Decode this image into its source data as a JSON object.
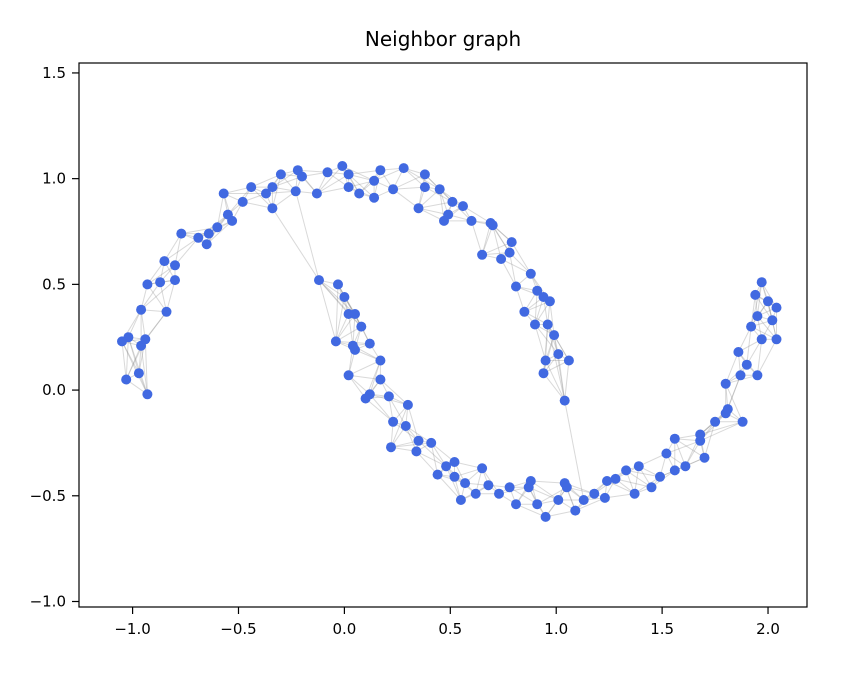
{
  "chart_data": {
    "type": "scatter",
    "title": "Neighbor graph",
    "xlabel": "",
    "ylabel": "",
    "grid": false,
    "legend": null,
    "xlim": [
      -1.253,
      2.184
    ],
    "ylim": [
      -1.026,
      1.547
    ],
    "x_ticks": [
      {
        "value": -1.0,
        "label": "−1.0"
      },
      {
        "value": -0.5,
        "label": "−0.5"
      },
      {
        "value": 0.0,
        "label": "0.0"
      },
      {
        "value": 0.5,
        "label": "0.5"
      },
      {
        "value": 1.0,
        "label": "1.0"
      },
      {
        "value": 1.5,
        "label": "1.5"
      },
      {
        "value": 2.0,
        "label": "2.0"
      }
    ],
    "y_ticks": [
      {
        "value": -1.0,
        "label": "−1.0"
      },
      {
        "value": -0.5,
        "label": "−0.5"
      },
      {
        "value": 0.0,
        "label": "0.0"
      },
      {
        "value": 0.5,
        "label": "0.5"
      },
      {
        "value": 1.0,
        "label": "1.0"
      },
      {
        "value": 1.5,
        "label": "1.5"
      }
    ],
    "marker": {
      "color": "#4169e1",
      "radius": 5
    },
    "edge_style": {
      "color": "#888888",
      "opacity": 0.32,
      "width": 1
    },
    "graph": {
      "type": "knn",
      "k": 6,
      "extra_edges": [
        [
          0,
          142
        ],
        [
          33,
          72
        ],
        [
          37,
          72
        ]
      ]
    },
    "points": [
      [
        1.04,
        -0.05
      ],
      [
        0.94,
        0.08
      ],
      [
        1.01,
        0.17
      ],
      [
        1.06,
        0.14
      ],
      [
        0.95,
        0.14
      ],
      [
        0.9,
        0.31
      ],
      [
        0.96,
        0.31
      ],
      [
        0.97,
        0.42
      ],
      [
        0.85,
        0.37
      ],
      [
        0.91,
        0.47
      ],
      [
        0.94,
        0.44
      ],
      [
        0.81,
        0.49
      ],
      [
        0.74,
        0.62
      ],
      [
        0.79,
        0.7
      ],
      [
        0.78,
        0.65
      ],
      [
        0.65,
        0.64
      ],
      [
        0.69,
        0.79
      ],
      [
        0.7,
        0.78
      ],
      [
        0.56,
        0.87
      ],
      [
        0.47,
        0.8
      ],
      [
        0.51,
        0.89
      ],
      [
        0.49,
        0.83
      ],
      [
        0.35,
        0.86
      ],
      [
        0.38,
        0.96
      ],
      [
        0.38,
        1.02
      ],
      [
        0.23,
        0.95
      ],
      [
        0.14,
        0.91
      ],
      [
        0.17,
        1.04
      ],
      [
        0.14,
        0.99
      ],
      [
        -0.01,
        1.06
      ],
      [
        0.02,
        0.96
      ],
      [
        0.02,
        1.02
      ],
      [
        -0.13,
        0.93
      ],
      [
        -0.23,
        0.94
      ],
      [
        -0.2,
        1.01
      ],
      [
        -0.22,
        1.04
      ],
      [
        -0.37,
        0.93
      ],
      [
        -0.34,
        0.86
      ],
      [
        -0.34,
        0.96
      ],
      [
        -0.48,
        0.89
      ],
      [
        -0.57,
        0.93
      ],
      [
        -0.53,
        0.8
      ],
      [
        -0.55,
        0.83
      ],
      [
        -0.69,
        0.72
      ],
      [
        -0.65,
        0.69
      ],
      [
        -0.64,
        0.74
      ],
      [
        -0.77,
        0.74
      ],
      [
        -0.85,
        0.61
      ],
      [
        -0.8,
        0.52
      ],
      [
        -0.8,
        0.59
      ],
      [
        -0.93,
        0.5
      ],
      [
        -0.87,
        0.51
      ],
      [
        -0.84,
        0.37
      ],
      [
        -0.96,
        0.38
      ],
      [
        -1.02,
        0.25
      ],
      [
        -0.96,
        0.21
      ],
      [
        -0.94,
        0.24
      ],
      [
        -1.05,
        0.23
      ],
      [
        -0.97,
        0.08
      ],
      [
        -0.93,
        -0.02
      ],
      [
        -1.03,
        0.05
      ],
      [
        0.45,
        0.95
      ],
      [
        0.28,
        1.05
      ],
      [
        0.07,
        0.93
      ],
      [
        -0.08,
        1.03
      ],
      [
        -0.3,
        1.02
      ],
      [
        0.6,
        0.8
      ],
      [
        -0.44,
        0.96
      ],
      [
        0.88,
        0.55
      ],
      [
        0.99,
        0.26
      ],
      [
        -0.6,
        0.77
      ],
      [
        -0.03,
        0.5
      ],
      [
        -0.12,
        0.52
      ],
      [
        0.02,
        0.36
      ],
      [
        0.05,
        0.36
      ],
      [
        -0.04,
        0.23
      ],
      [
        0.05,
        0.19
      ],
      [
        0.12,
        0.22
      ],
      [
        0.04,
        0.21
      ],
      [
        0.02,
        0.07
      ],
      [
        0.12,
        -0.02
      ],
      [
        0.17,
        0.05
      ],
      [
        0.1,
        -0.04
      ],
      [
        0.21,
        -0.03
      ],
      [
        0.29,
        -0.17
      ],
      [
        0.23,
        -0.15
      ],
      [
        0.22,
        -0.27
      ],
      [
        0.34,
        -0.29
      ],
      [
        0.41,
        -0.25
      ],
      [
        0.35,
        -0.24
      ],
      [
        0.48,
        -0.36
      ],
      [
        0.57,
        -0.44
      ],
      [
        0.52,
        -0.34
      ],
      [
        0.52,
        -0.41
      ],
      [
        0.65,
        -0.37
      ],
      [
        0.73,
        -0.49
      ],
      [
        0.68,
        -0.45
      ],
      [
        0.81,
        -0.54
      ],
      [
        0.91,
        -0.54
      ],
      [
        0.87,
        -0.46
      ],
      [
        0.88,
        -0.43
      ],
      [
        1.01,
        -0.52
      ],
      [
        1.09,
        -0.57
      ],
      [
        1.04,
        -0.44
      ],
      [
        1.18,
        -0.49
      ],
      [
        1.28,
        -0.42
      ],
      [
        1.23,
        -0.51
      ],
      [
        1.24,
        -0.43
      ],
      [
        1.37,
        -0.49
      ],
      [
        1.45,
        -0.46
      ],
      [
        1.39,
        -0.36
      ],
      [
        1.52,
        -0.3
      ],
      [
        1.61,
        -0.36
      ],
      [
        1.56,
        -0.38
      ],
      [
        1.56,
        -0.23
      ],
      [
        1.68,
        -0.24
      ],
      [
        1.75,
        -0.15
      ],
      [
        1.68,
        -0.21
      ],
      [
        1.8,
        -0.11
      ],
      [
        1.88,
        -0.15
      ],
      [
        1.81,
        -0.09
      ],
      [
        1.8,
        0.03
      ],
      [
        1.9,
        0.12
      ],
      [
        1.95,
        0.07
      ],
      [
        1.87,
        0.07
      ],
      [
        1.97,
        0.24
      ],
      [
        2.04,
        0.24
      ],
      [
        1.95,
        0.35
      ],
      [
        1.92,
        0.3
      ],
      [
        2.0,
        0.42
      ],
      [
        2.04,
        0.39
      ],
      [
        1.94,
        0.45
      ],
      [
        0.0,
        0.44
      ],
      [
        0.08,
        0.3
      ],
      [
        0.17,
        0.14
      ],
      [
        0.3,
        -0.07
      ],
      [
        0.44,
        -0.4
      ],
      [
        0.55,
        -0.52
      ],
      [
        0.62,
        -0.49
      ],
      [
        0.78,
        -0.46
      ],
      [
        0.95,
        -0.6
      ],
      [
        1.05,
        -0.46
      ],
      [
        1.13,
        -0.52
      ],
      [
        1.33,
        -0.38
      ],
      [
        1.49,
        -0.41
      ],
      [
        1.7,
        -0.32
      ],
      [
        1.86,
        0.18
      ],
      [
        1.97,
        0.51
      ],
      [
        2.02,
        0.33
      ]
    ]
  }
}
